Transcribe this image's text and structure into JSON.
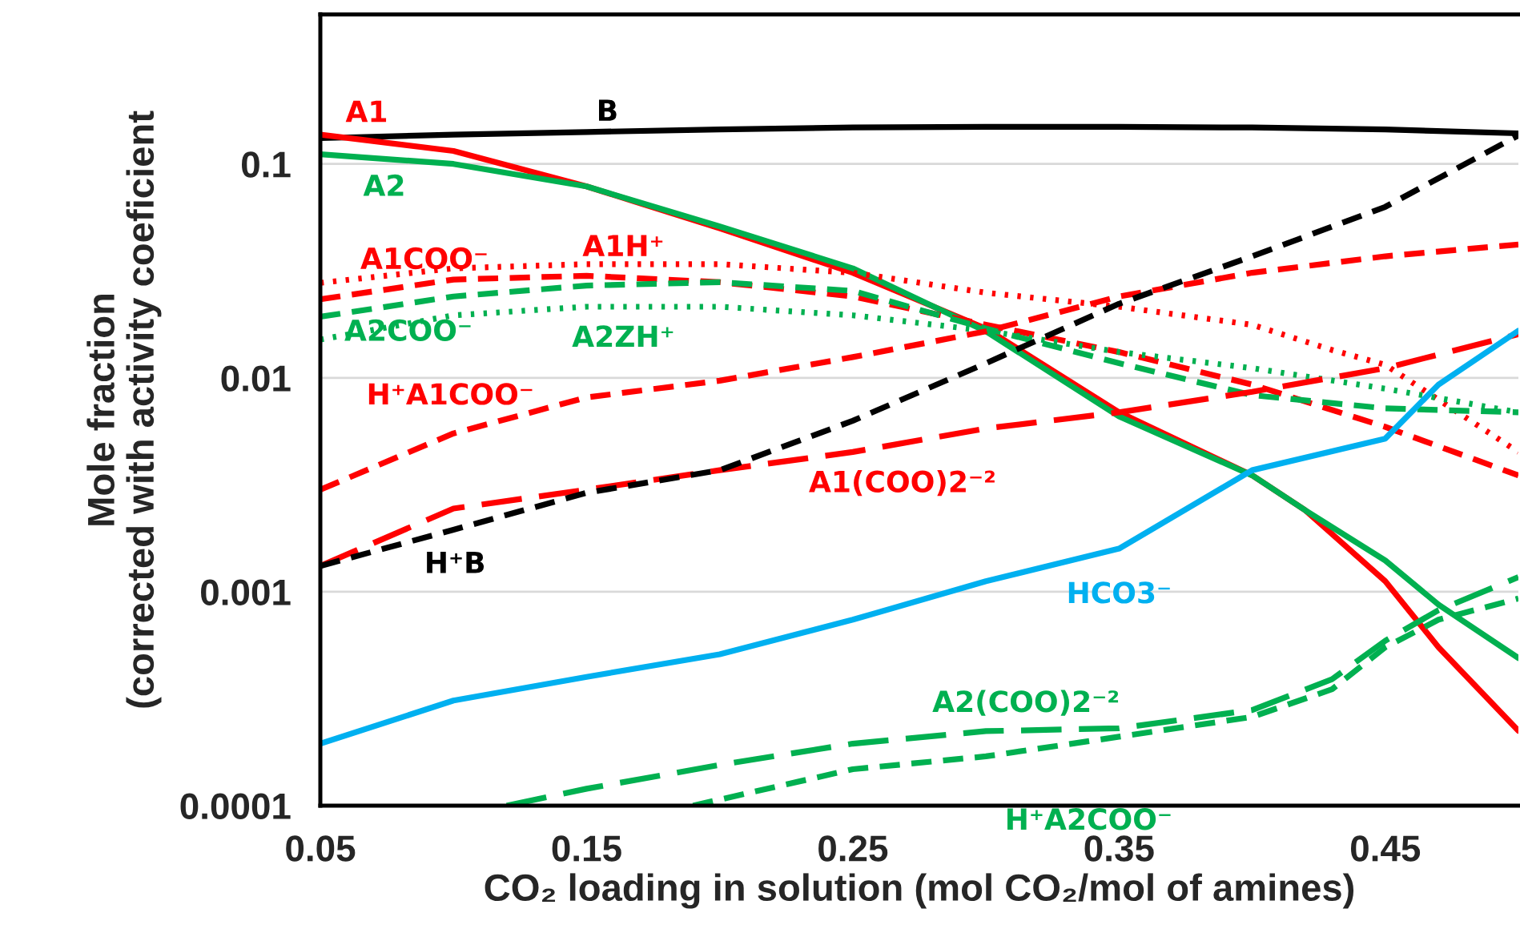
{
  "chart_data": {
    "type": "line",
    "xlabel": "CO₂ loading in solution (mol CO₂/mol of amines)",
    "ylabel": "Mole fraction\n(corrected with activity coeficient",
    "xlim": [
      0.05,
      0.5
    ],
    "xticks": [
      0.05,
      0.15,
      0.25,
      0.35,
      0.45
    ],
    "ylim": [
      0.0001,
      0.5
    ],
    "yticks": [
      0.0001,
      0.001,
      0.01,
      0.1
    ],
    "log": "y",
    "grid": "y",
    "legend": false,
    "marker": "none",
    "series": [
      {
        "name": "B",
        "color": "#000000",
        "line_style": "solid",
        "x": [
          0.05,
          0.1,
          0.15,
          0.2,
          0.25,
          0.3,
          0.35,
          0.4,
          0.45,
          0.5
        ],
        "values": [
          0.132,
          0.137,
          0.141,
          0.145,
          0.148,
          0.149,
          0.149,
          0.148,
          0.145,
          0.139
        ]
      },
      {
        "name": "A1",
        "color": "#ff0000",
        "line_style": "solid",
        "x": [
          0.05,
          0.1,
          0.15,
          0.2,
          0.25,
          0.3,
          0.35,
          0.4,
          0.42,
          0.45,
          0.47,
          0.5
        ],
        "values": [
          0.137,
          0.115,
          0.0785,
          0.05,
          0.031,
          0.017,
          0.0069,
          0.0035,
          0.0024,
          0.00112,
          0.00055,
          0.000224
        ]
      },
      {
        "name": "A2",
        "color": "#00b050",
        "line_style": "solid",
        "x": [
          0.05,
          0.1,
          0.15,
          0.2,
          0.25,
          0.3,
          0.35,
          0.4,
          0.42,
          0.45,
          0.47,
          0.5
        ],
        "values": [
          0.111,
          0.1,
          0.0785,
          0.051,
          0.0325,
          0.0165,
          0.0066,
          0.0035,
          0.0024,
          0.0014,
          0.00087,
          0.00049
        ]
      },
      {
        "name": "A1COO⁻",
        "color": "#ff0000",
        "line_style": "dashed",
        "x": [
          0.05,
          0.1,
          0.15,
          0.2,
          0.25,
          0.3,
          0.35,
          0.4,
          0.45,
          0.5
        ],
        "values": [
          0.0233,
          0.0288,
          0.03,
          0.028,
          0.024,
          0.0177,
          0.0132,
          0.0093,
          0.0059,
          0.0035
        ]
      },
      {
        "name": "A1H⁺",
        "color": "#ff0000",
        "line_style": "dotted",
        "x": [
          0.05,
          0.1,
          0.15,
          0.2,
          0.25,
          0.3,
          0.35,
          0.4,
          0.43,
          0.45,
          0.47,
          0.5
        ],
        "values": [
          0.0278,
          0.0325,
          0.034,
          0.034,
          0.031,
          0.025,
          0.0215,
          0.0177,
          0.0135,
          0.0115,
          0.0079,
          0.0045
        ]
      },
      {
        "name": "A2COO⁻",
        "color": "#00b050",
        "line_style": "dashed",
        "x": [
          0.05,
          0.1,
          0.15,
          0.2,
          0.25,
          0.3,
          0.35,
          0.4,
          0.45,
          0.5
        ],
        "values": [
          0.0193,
          0.024,
          0.027,
          0.028,
          0.0255,
          0.017,
          0.0117,
          0.0083,
          0.0072,
          0.0069
        ]
      },
      {
        "name": "A2ZH⁺",
        "color": "#00b050",
        "line_style": "dotted",
        "x": [
          0.05,
          0.1,
          0.15,
          0.2,
          0.25,
          0.3,
          0.35,
          0.4,
          0.45,
          0.5
        ],
        "values": [
          0.0151,
          0.0196,
          0.0215,
          0.0215,
          0.0196,
          0.0166,
          0.0132,
          0.0111,
          0.0089,
          0.0069
        ]
      },
      {
        "name": "H⁺A1COO⁻",
        "color": "#ff0000",
        "line_style": "dashed",
        "x": [
          0.05,
          0.1,
          0.15,
          0.2,
          0.25,
          0.3,
          0.35,
          0.4,
          0.45,
          0.5
        ],
        "values": [
          0.003,
          0.0055,
          0.0081,
          0.0097,
          0.0125,
          0.0165,
          0.024,
          0.031,
          0.037,
          0.042
        ]
      },
      {
        "name": "A1(COO)2⁻²",
        "color": "#ff0000",
        "line_style": "longdash",
        "x": [
          0.05,
          0.1,
          0.15,
          0.2,
          0.25,
          0.3,
          0.35,
          0.4,
          0.45,
          0.5
        ],
        "values": [
          0.00132,
          0.00245,
          0.003,
          0.0037,
          0.0045,
          0.0058,
          0.0069,
          0.0086,
          0.0111,
          0.016
        ]
      },
      {
        "name": "H⁺B",
        "color": "#000000",
        "line_style": "dashed",
        "x": [
          0.05,
          0.1,
          0.15,
          0.2,
          0.25,
          0.3,
          0.35,
          0.4,
          0.45,
          0.5
        ],
        "values": [
          0.00132,
          0.00195,
          0.0029,
          0.0037,
          0.0063,
          0.0117,
          0.0222,
          0.037,
          0.063,
          0.136
        ]
      },
      {
        "name": "HCO3⁻",
        "color": "#00b0f0",
        "line_style": "solid",
        "x": [
          0.05,
          0.1,
          0.15,
          0.2,
          0.25,
          0.3,
          0.35,
          0.4,
          0.45,
          0.47,
          0.5
        ],
        "values": [
          0.000195,
          0.00031,
          0.0004,
          0.00051,
          0.00074,
          0.00112,
          0.00159,
          0.0037,
          0.0052,
          0.0093,
          0.0166
        ]
      },
      {
        "name": "A2(COO)2⁻²",
        "color": "#00b050",
        "line_style": "longdash",
        "x": [
          0.12,
          0.15,
          0.2,
          0.25,
          0.3,
          0.35,
          0.4,
          0.43,
          0.45,
          0.47,
          0.5
        ],
        "values": [
          0.0001,
          0.00012,
          0.000155,
          0.000195,
          0.000223,
          0.00023,
          0.00028,
          0.00039,
          0.00059,
          0.00082,
          0.00117
        ]
      },
      {
        "name": "H⁺A2COO⁻",
        "color": "#00b050",
        "line_style": "dashed",
        "x": [
          0.19,
          0.25,
          0.3,
          0.35,
          0.4,
          0.43,
          0.45,
          0.47,
          0.5
        ],
        "values": [
          0.0001,
          0.000148,
          0.00017,
          0.00021,
          0.00026,
          0.00035,
          0.00055,
          0.00074,
          0.00093
        ]
      }
    ]
  }
}
